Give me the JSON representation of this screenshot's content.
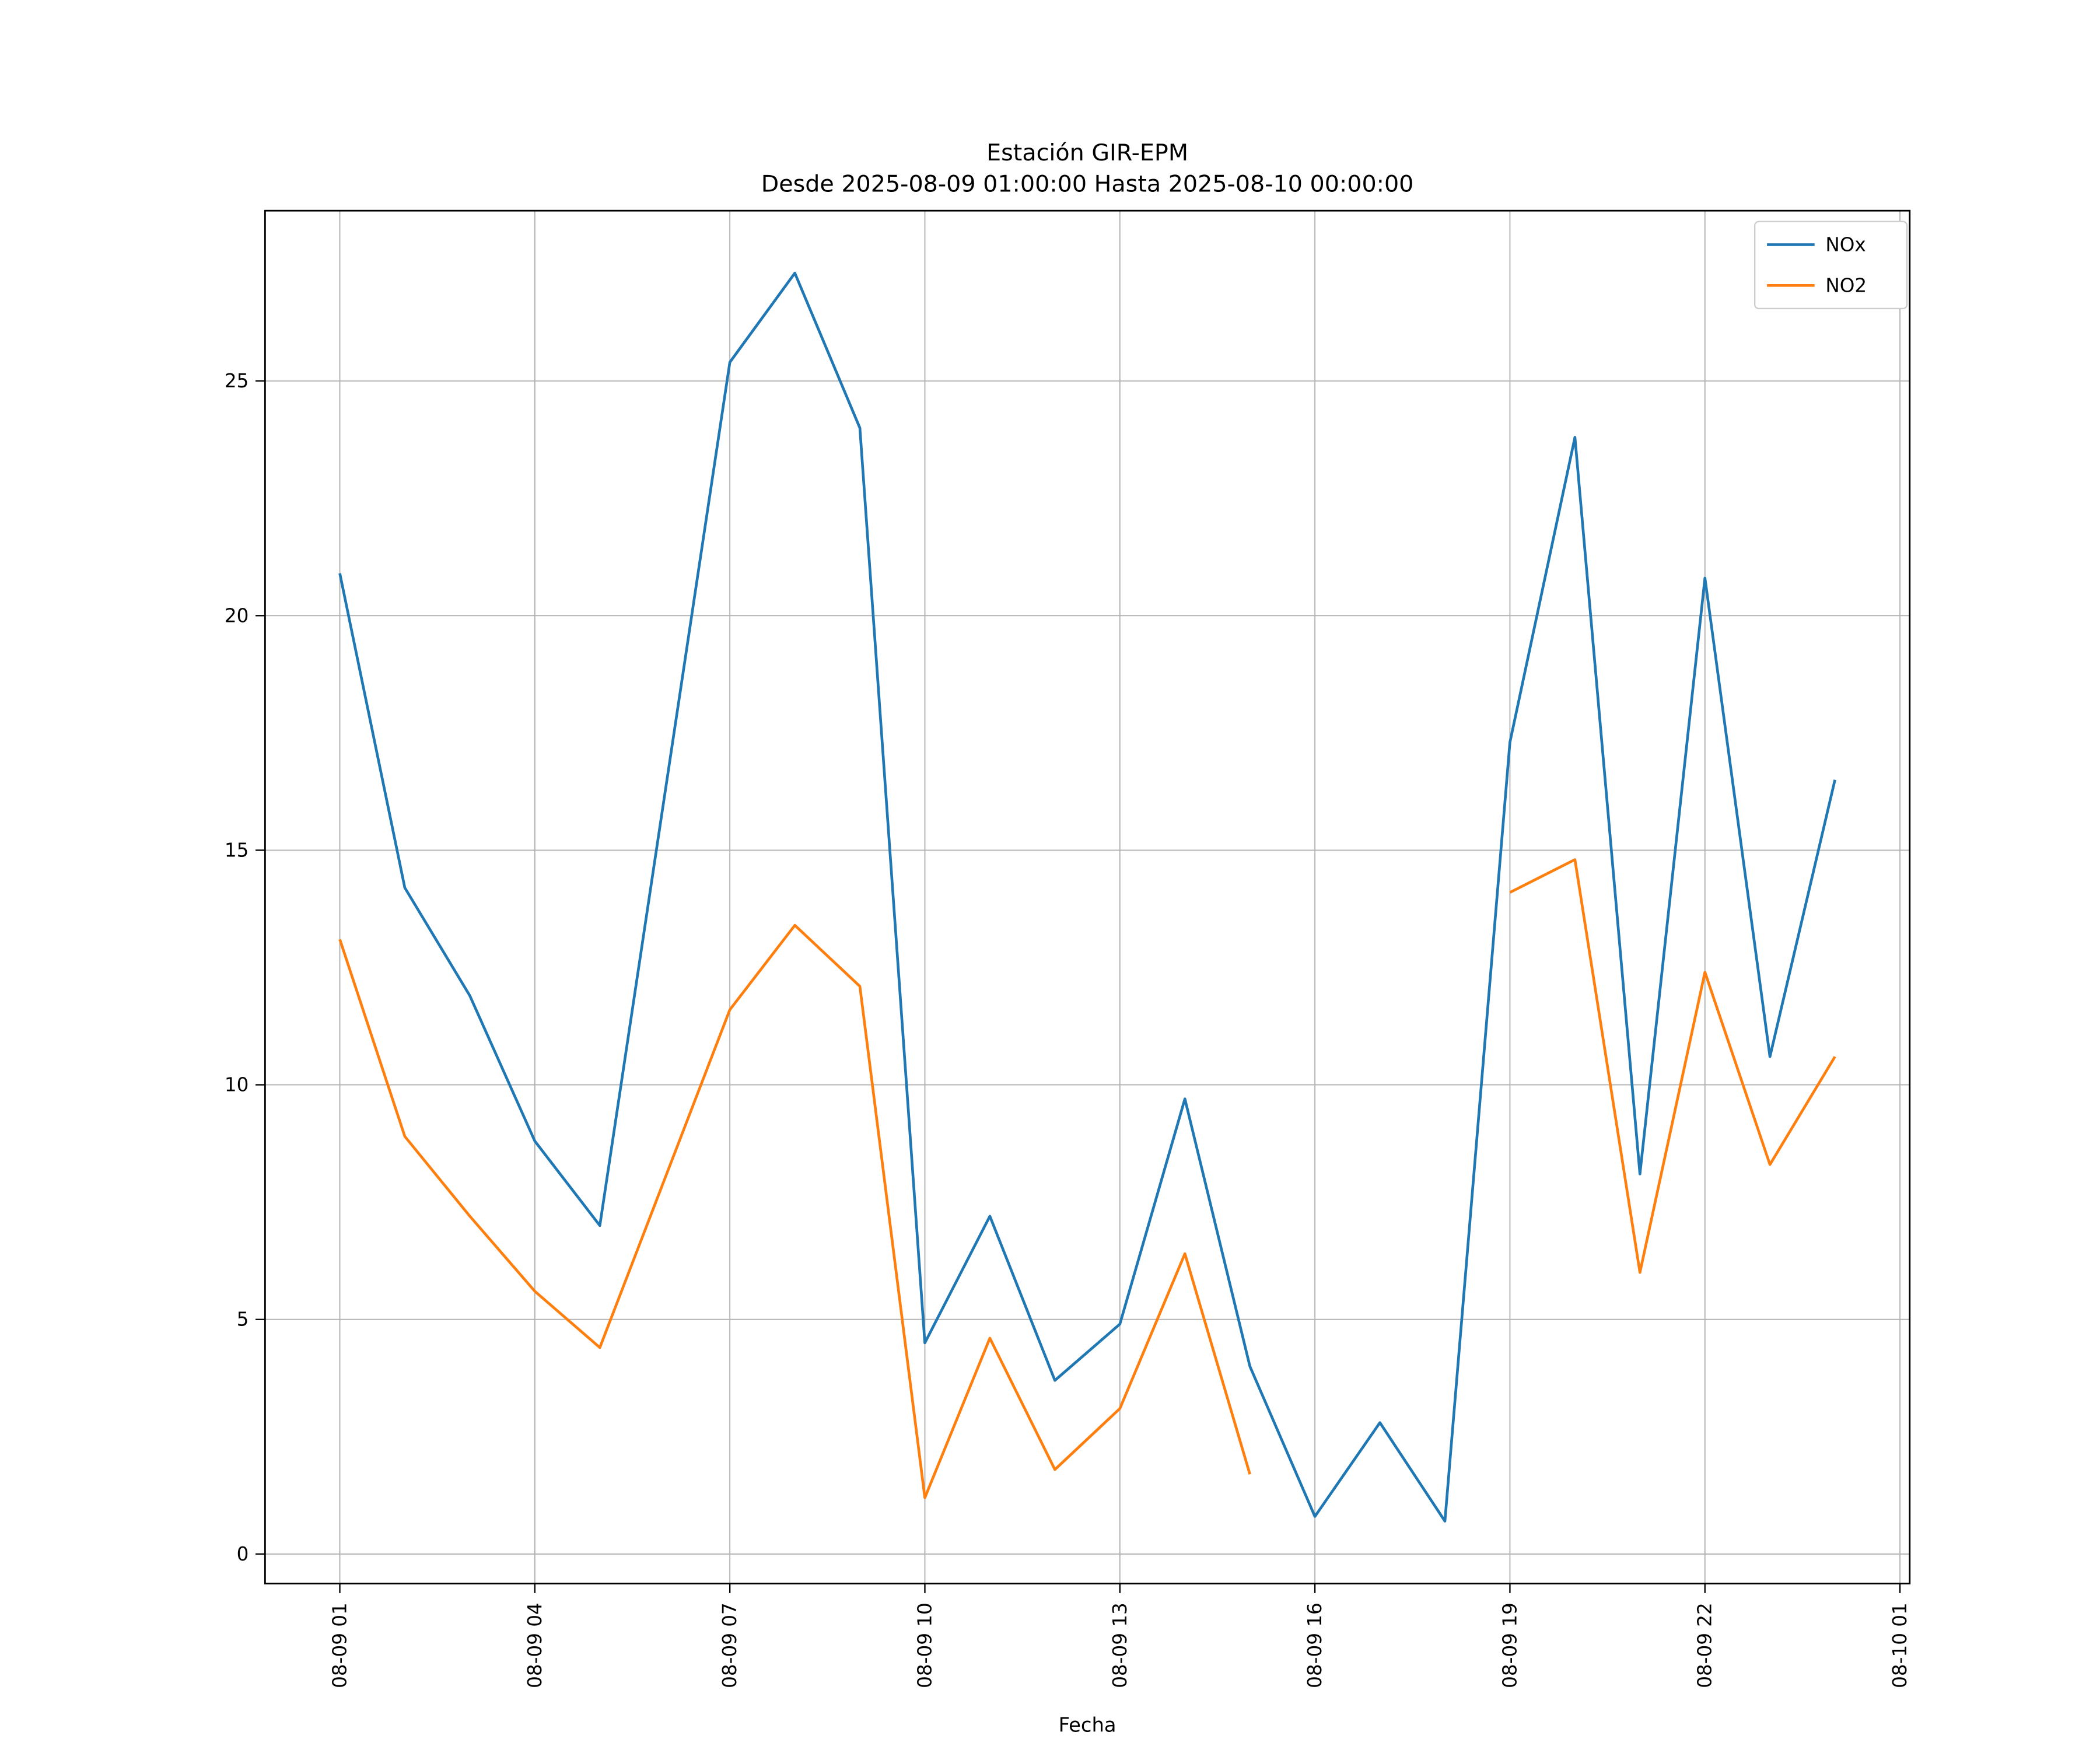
{
  "figure": {
    "title_line1": "Estación GIR-EPM",
    "title_line2": "Desde 2025-08-09 01:00:00 Hasta 2025-08-10 00:00:00",
    "xlabel": "Fecha",
    "background": "#ffffff"
  },
  "chart_data": {
    "type": "line",
    "title": "Estación GIR-EPM",
    "subtitle": "Desde 2025-08-09 01:00:00 Hasta 2025-08-10 00:00:00",
    "xlabel": "Fecha",
    "ylabel": "",
    "grid": true,
    "legend_position": "upper right",
    "grid_color": "#b0b0b0",
    "axis_color": "#000000",
    "xlim": [
      -0.15,
      25.15
    ],
    "ylim": [
      -0.63,
      28.63
    ],
    "x_hours": [
      1,
      2,
      3,
      4,
      5,
      6,
      7,
      8,
      9,
      10,
      11,
      12,
      13,
      14,
      15,
      16,
      17,
      18,
      19,
      20,
      21,
      22,
      23,
      24
    ],
    "x_tick_hours": [
      1,
      4,
      7,
      10,
      13,
      16,
      19,
      22,
      25
    ],
    "x_tick_labels": [
      "08-09 01",
      "08-09 04",
      "08-09 07",
      "08-09 10",
      "08-09 13",
      "08-09 16",
      "08-09 19",
      "08-09 22",
      "08-10 01"
    ],
    "y_ticks": [
      0,
      5,
      10,
      15,
      20,
      25
    ],
    "y_tick_labels": [
      "0",
      "5",
      "10",
      "15",
      "20",
      "25"
    ],
    "series": [
      {
        "name": "NOx",
        "color": "#1f77b4",
        "values": [
          20.9,
          14.2,
          11.9,
          8.8,
          7.0,
          16.2,
          25.4,
          27.3,
          24.0,
          4.5,
          7.2,
          3.7,
          4.9,
          9.7,
          4.0,
          0.8,
          2.8,
          0.7,
          17.3,
          23.8,
          8.1,
          20.8,
          10.6,
          16.5
        ]
      },
      {
        "name": "NO2",
        "color": "#ff7f0e",
        "values": [
          13.1,
          8.9,
          7.2,
          5.6,
          4.4,
          8.0,
          11.6,
          13.4,
          12.1,
          1.2,
          4.6,
          1.8,
          3.1,
          6.4,
          1.7,
          null,
          null,
          null,
          14.1,
          14.8,
          6.0,
          12.4,
          8.3,
          10.6
        ]
      }
    ]
  }
}
